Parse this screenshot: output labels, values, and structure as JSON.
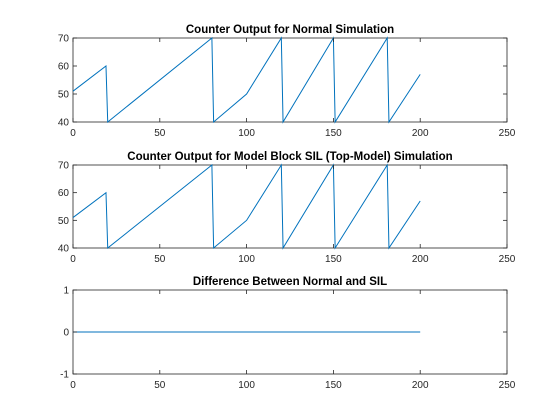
{
  "figure": {
    "background": "#ffffff",
    "line_color": "#0072bd"
  },
  "chart_data": [
    {
      "type": "line",
      "title": "Counter Output for Normal Simulation",
      "xlim": [
        0,
        250
      ],
      "ylim": [
        40,
        70
      ],
      "xticks": [
        0,
        50,
        100,
        150,
        200,
        250
      ],
      "yticks": [
        40,
        50,
        60,
        70
      ],
      "grid": false,
      "series": [
        {
          "x": [
            0,
            19,
            20,
            80,
            81,
            100,
            120,
            121,
            150,
            151,
            181,
            182,
            200
          ],
          "y": [
            51,
            60,
            40,
            70,
            40,
            50,
            70,
            40,
            70,
            40,
            70,
            40,
            57
          ]
        }
      ]
    },
    {
      "type": "line",
      "title": "Counter Output for Model Block SIL (Top-Model) Simulation",
      "xlim": [
        0,
        250
      ],
      "ylim": [
        40,
        70
      ],
      "xticks": [
        0,
        50,
        100,
        150,
        200,
        250
      ],
      "yticks": [
        40,
        50,
        60,
        70
      ],
      "grid": false,
      "series": [
        {
          "x": [
            0,
            19,
            20,
            80,
            81,
            100,
            120,
            121,
            150,
            151,
            181,
            182,
            200
          ],
          "y": [
            51,
            60,
            40,
            70,
            40,
            50,
            70,
            40,
            70,
            40,
            70,
            40,
            57
          ]
        }
      ]
    },
    {
      "type": "line",
      "title": "Difference Between Normal and SIL",
      "xlim": [
        0,
        250
      ],
      "ylim": [
        -1,
        1
      ],
      "xticks": [
        0,
        50,
        100,
        150,
        200,
        250
      ],
      "yticks": [
        -1,
        0,
        1
      ],
      "grid": false,
      "series": [
        {
          "x": [
            0,
            200
          ],
          "y": [
            0,
            0
          ]
        }
      ]
    }
  ]
}
